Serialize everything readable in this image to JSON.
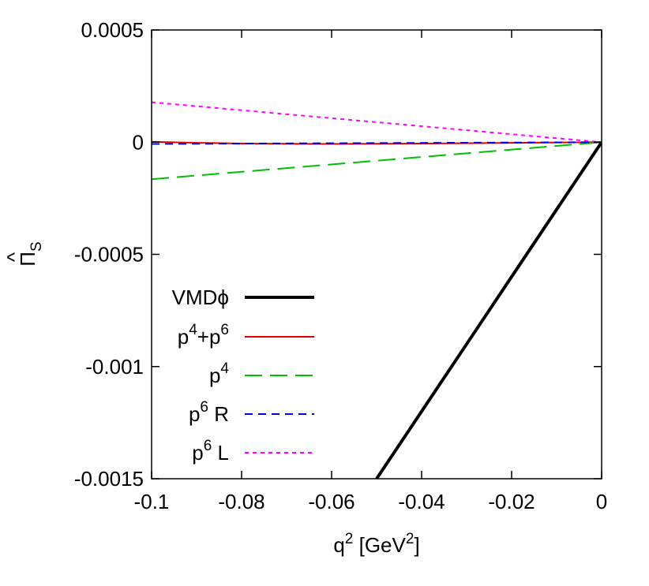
{
  "chart_data": {
    "type": "line",
    "title": "",
    "xlabel": {
      "base": "q",
      "sup": "2",
      "mid": " [GeV",
      "sup2": "2",
      "end": "]"
    },
    "ylabel": {
      "text": "Π",
      "hat": "^",
      "sub": "S"
    },
    "xlim": [
      -0.1,
      0
    ],
    "ylim": [
      -0.0015,
      0.0005
    ],
    "xticks": [
      -0.1,
      -0.08,
      -0.06,
      -0.04,
      -0.02,
      0
    ],
    "xtick_labels": [
      "-0.1",
      "-0.08",
      "-0.06",
      "-0.04",
      "-0.02",
      "0"
    ],
    "yticks": [
      0.0005,
      0,
      -0.0005,
      -0.001,
      -0.0015
    ],
    "ytick_labels": [
      "0.0005",
      "0",
      "-0.0005",
      "-0.001",
      "-0.0015"
    ],
    "grid": false,
    "legend_position": "bottom-left",
    "series": [
      {
        "name": "VMDϕ",
        "legend": {
          "base": "VMDϕ"
        },
        "color": "#000000",
        "dash": "solid",
        "width": 4,
        "x": [
          -0.05,
          -0.04,
          -0.03,
          -0.02,
          -0.01,
          0
        ],
        "y": [
          -0.0015,
          -0.0012,
          -0.0009,
          -0.0006,
          -0.0003,
          0
        ]
      },
      {
        "name": "p4+p6",
        "legend": {
          "base": "p",
          "sup": "4",
          "mid": "+p",
          "sup2": "6"
        },
        "color": "#e00000",
        "dash": "solid",
        "width": 2,
        "x": [
          -0.1,
          -0.09,
          -0.08,
          -0.06,
          -0.04,
          -0.02,
          0
        ],
        "y": [
          2e-06,
          -3e-06,
          -6e-06,
          -8e-06,
          -6e-06,
          -3e-06,
          0
        ]
      },
      {
        "name": "p4",
        "legend": {
          "base": "p",
          "sup": "4"
        },
        "color": "#00c000",
        "dash": "long",
        "width": 2,
        "x": [
          -0.1,
          0
        ],
        "y": [
          -0.000165,
          0
        ]
      },
      {
        "name": "p6 R",
        "legend": {
          "base": "p",
          "sup": "6",
          "mid": " R"
        },
        "color": "#0000e0",
        "dash": "short",
        "width": 2,
        "x": [
          -0.1,
          0
        ],
        "y": [
          -8e-06,
          0
        ]
      },
      {
        "name": "p6 L",
        "legend": {
          "base": "p",
          "sup": "6",
          "mid": " L"
        },
        "color": "#ff00ff",
        "dash": "dot",
        "width": 2,
        "x": [
          -0.1,
          0
        ],
        "y": [
          0.000178,
          0
        ]
      }
    ]
  }
}
